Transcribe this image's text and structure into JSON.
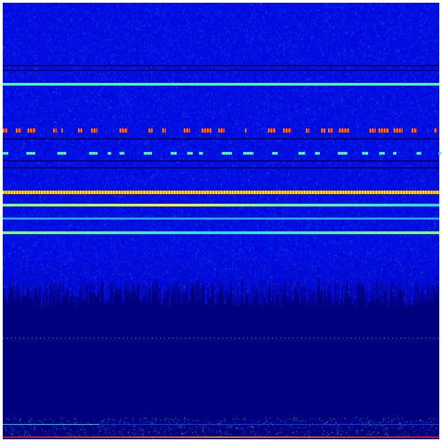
{
  "colors": {
    "background_low": "#00007f",
    "background_mid": "#0a24d8",
    "cyan": "#22e0e8",
    "green": "#7dff7a",
    "yellow": "#f5f51a",
    "orange": "#ff8a00",
    "red": "#e01010",
    "dark_line": "#000060"
  }
}
